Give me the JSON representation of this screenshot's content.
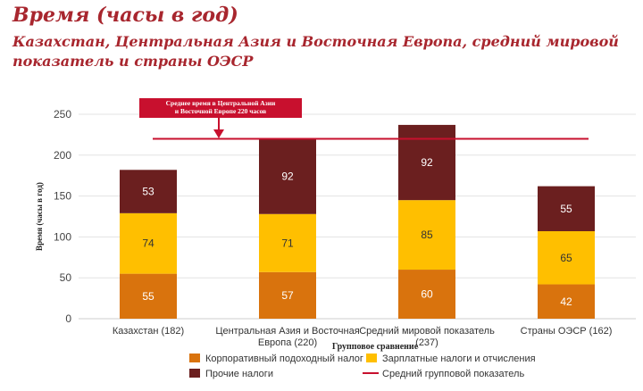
{
  "chart_data": {
    "type": "bar",
    "stacked": true,
    "title": "Время (часы в год)",
    "subtitle": "Казахстан, Центральная Азия и Восточная Европа, средний мировой показатель и страны ОЭСР",
    "xlabel": "Групповое сравнение",
    "ylabel": "Время (часы в год)",
    "ylim": [
      0,
      250
    ],
    "yticks": [
      0,
      50,
      100,
      150,
      200,
      250
    ],
    "categories": [
      [
        "Казахстан (182)"
      ],
      [
        "Центральная Азия и Восточная",
        "Европа (220)"
      ],
      [
        "Средний мировой показатель",
        "(237)"
      ],
      [
        "Страны ОЭСР (162)"
      ]
    ],
    "series": [
      {
        "name": "Корпоративный подоходный налог",
        "color": "#d9730d",
        "values": [
          55,
          57,
          60,
          42
        ]
      },
      {
        "name": "Зарплатные налоги и отчисления",
        "color": "#ffbf00",
        "values": [
          74,
          71,
          85,
          65
        ]
      },
      {
        "name": "Прочие налоги",
        "color": "#6b1f1f",
        "values": [
          53,
          92,
          92,
          55
        ]
      }
    ],
    "reference_line": {
      "name": "Средний групповой показатель",
      "value": 220,
      "color": "#c8102e"
    },
    "annotation": {
      "text": [
        "Среднее время в Центральной Азии",
        "и Восточной Европе 220 часов"
      ],
      "fill": "#c8102e",
      "text_color": "#ffffff"
    },
    "grid": true,
    "legend_position": "bottom"
  }
}
